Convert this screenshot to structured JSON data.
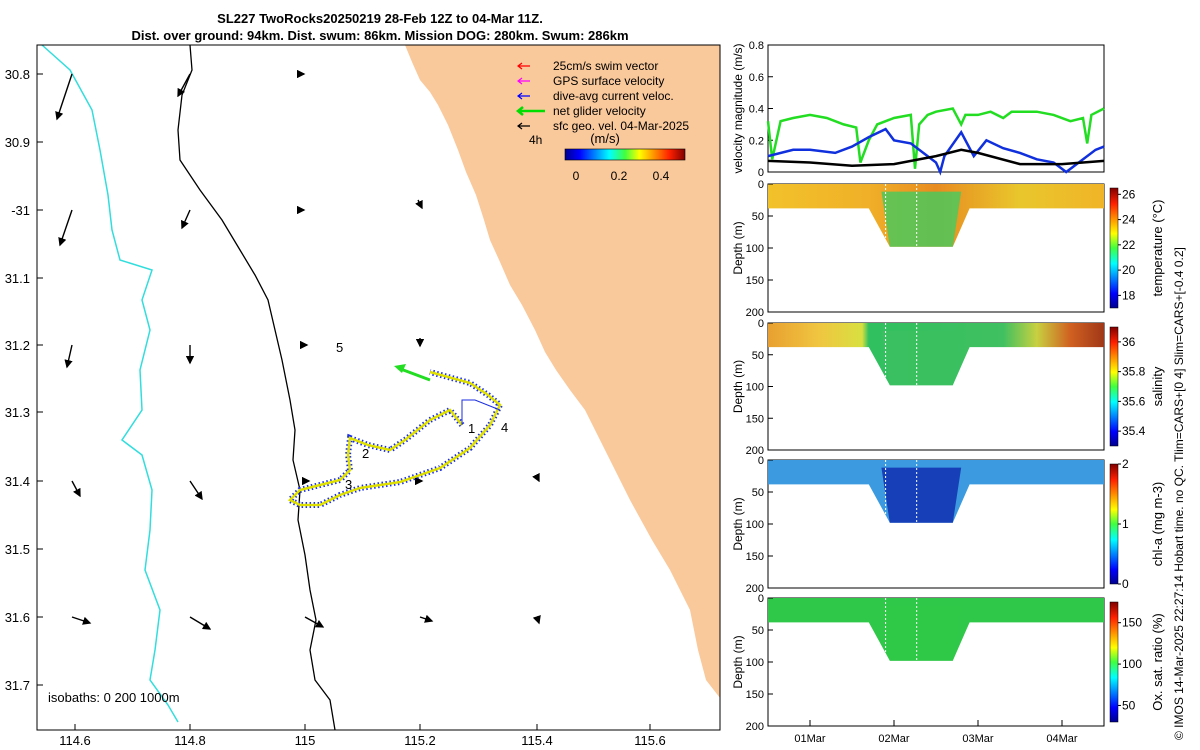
{
  "header": {
    "line1": "SL227 TwoRocks20250219 28-Feb 12Z to 04-Mar 11Z.",
    "line2": "Dist. over ground: 94km. Dist. swum: 86km. Mission DOG: 280km. Swum: 286km"
  },
  "credit": "© IMOS 14-Mar-2025 22:27:14 Hobart time. no QC. Tlim=CARS+[0 4] Slim=CARS+[-0.4 0.2]",
  "map": {
    "lon_ticks": [
      "114.6",
      "114.8",
      "115",
      "115.2",
      "115.4",
      "115.6"
    ],
    "lat_ticks": [
      "30.8",
      "30.9",
      "-31",
      "31.1",
      "31.2",
      "31.3",
      "31.4",
      "31.5",
      "31.6",
      "31.7"
    ],
    "legend": [
      {
        "label": "25cm/s swim vector",
        "color": "#ff0000"
      },
      {
        "label": "GPS surface velocity",
        "color": "#ff00ff"
      },
      {
        "label": "dive-avg current veloc.",
        "color": "#0000ff"
      },
      {
        "label": "net glider velocity",
        "color": "#00dd00"
      },
      {
        "label": "sfc geo. vel. 04-Mar-2025",
        "color": "#000000"
      }
    ],
    "interval_label": "4h",
    "colorbar_label": "(m/s)",
    "colorbar_ticks": [
      "0",
      "0.2",
      "0.4"
    ],
    "waypoints": [
      "1",
      "2",
      "3",
      "4",
      "5"
    ],
    "isobath_label": "isobaths: 0   200  1000m",
    "colors": {
      "land": "#f9c89b",
      "isobath_200": "#000000",
      "isobath_1000": "#33dddd"
    }
  },
  "chart_data": [
    {
      "type": "line",
      "title": "",
      "xlabel": "",
      "ylabel": "velocity magnitude (m/s)",
      "ylim": [
        0,
        0.8
      ],
      "yticks": [
        "0",
        "0.2",
        "0.4",
        "0.6",
        "0.8"
      ],
      "xlim_days": [
        0,
        4
      ],
      "series": [
        {
          "name": "net glider velocity",
          "color": "#22dd22",
          "x": [
            0,
            0.05,
            0.15,
            0.3,
            0.5,
            0.7,
            0.9,
            1.05,
            1.1,
            1.2,
            1.3,
            1.5,
            1.7,
            1.75,
            1.8,
            1.9,
            2.0,
            2.2,
            2.3,
            2.35,
            2.5,
            2.65,
            2.8,
            2.9,
            3.0,
            3.2,
            3.4,
            3.6,
            3.75,
            3.8,
            3.85,
            4.0
          ],
          "y": [
            0.32,
            0.08,
            0.32,
            0.34,
            0.36,
            0.34,
            0.3,
            0.28,
            0.06,
            0.2,
            0.3,
            0.34,
            0.36,
            0.02,
            0.3,
            0.36,
            0.38,
            0.4,
            0.3,
            0.36,
            0.36,
            0.38,
            0.34,
            0.38,
            0.38,
            0.38,
            0.36,
            0.32,
            0.34,
            0.18,
            0.36,
            0.4
          ]
        },
        {
          "name": "dive-avg current veloc.",
          "color": "#1030dd",
          "x": [
            0,
            0.3,
            0.5,
            0.8,
            1.0,
            1.2,
            1.4,
            1.5,
            1.7,
            1.9,
            2.0,
            2.05,
            2.1,
            2.3,
            2.45,
            2.6,
            2.8,
            3.0,
            3.2,
            3.4,
            3.55,
            3.7,
            3.9,
            4.0
          ],
          "y": [
            0.1,
            0.14,
            0.14,
            0.12,
            0.16,
            0.22,
            0.27,
            0.2,
            0.18,
            0.1,
            0.06,
            0.0,
            0.1,
            0.25,
            0.1,
            0.2,
            0.15,
            0.12,
            0.08,
            0.06,
            0.0,
            0.06,
            0.14,
            0.16
          ]
        },
        {
          "name": "sfc geo. vel.",
          "color": "#000000",
          "x": [
            0,
            0.5,
            1.0,
            1.5,
            2.0,
            2.3,
            2.5,
            3.0,
            3.5,
            4.0
          ],
          "y": [
            0.07,
            0.06,
            0.04,
            0.05,
            0.1,
            0.14,
            0.12,
            0.05,
            0.05,
            0.07
          ]
        }
      ]
    },
    {
      "type": "heatmap",
      "variable": "temperature",
      "ylabel": "Depth (m)",
      "colorbar_label": "temperature (°C)",
      "ylim": [
        200,
        0
      ],
      "yticks": [
        "0",
        "50",
        "100",
        "150",
        "200"
      ],
      "clim": [
        17,
        26.5
      ],
      "cticks": [
        "18",
        "20",
        "22",
        "24",
        "26"
      ]
    },
    {
      "type": "heatmap",
      "variable": "salinity",
      "ylabel": "Depth (m)",
      "colorbar_label": "salinity",
      "ylim": [
        200,
        0
      ],
      "yticks": [
        "0",
        "50",
        "100",
        "150",
        "200"
      ],
      "clim": [
        35.3,
        36.1
      ],
      "cticks": [
        "35.4",
        "35.6",
        "35.8",
        "36"
      ]
    },
    {
      "type": "heatmap",
      "variable": "chl-a",
      "ylabel": "Depth (m)",
      "colorbar_label": "chl-a (mg m-3)",
      "ylim": [
        200,
        0
      ],
      "yticks": [
        "0",
        "50",
        "100",
        "150",
        "200"
      ],
      "clim": [
        0,
        2
      ],
      "cticks": [
        "0",
        "1",
        "2"
      ]
    },
    {
      "type": "heatmap",
      "variable": "oxygen saturation",
      "ylabel": "Depth (m)",
      "colorbar_label": "Ox. sat. ratio (%)",
      "ylim": [
        200,
        0
      ],
      "yticks": [
        "0",
        "50",
        "100",
        "150",
        "200"
      ],
      "clim": [
        30,
        175
      ],
      "cticks": [
        "50",
        "100",
        "150"
      ]
    }
  ],
  "time_axis": {
    "ticks": [
      "01Mar",
      "02Mar",
      "03Mar",
      "04Mar"
    ]
  }
}
